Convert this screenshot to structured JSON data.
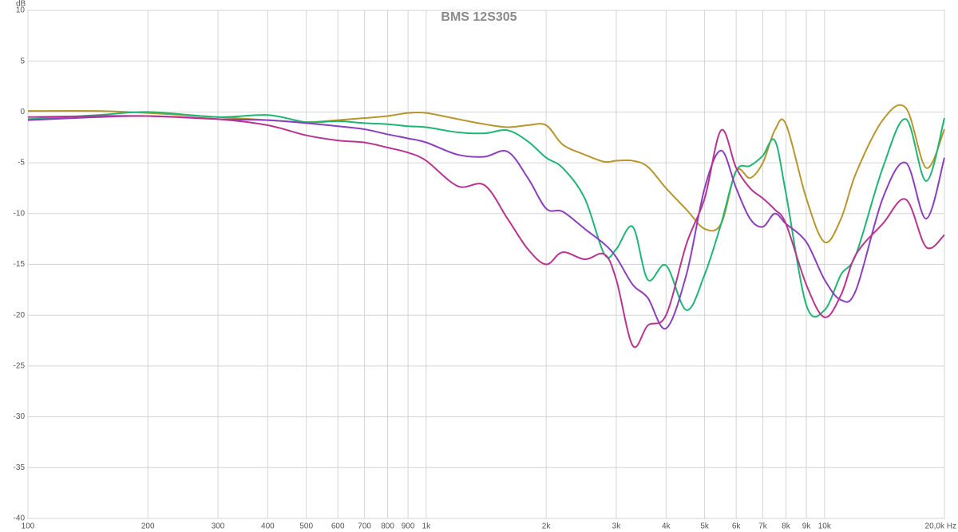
{
  "chart_data": {
    "type": "line",
    "title": "BMS 12S305",
    "ylabel": "dB",
    "xscale": "log",
    "grid": true,
    "xlim": [
      100,
      20000
    ],
    "ylim": [
      -40,
      10
    ],
    "yticks": [
      -40,
      -35,
      -30,
      -25,
      -20,
      -15,
      -10,
      -5,
      0,
      5,
      10
    ],
    "xticks": [
      100,
      200,
      300,
      400,
      500,
      600,
      700,
      800,
      900,
      {
        "value": 1000,
        "label": "1k"
      },
      {
        "value": 2000,
        "label": "2k"
      },
      {
        "value": 3000,
        "label": "3k"
      },
      {
        "value": 4000,
        "label": "4k"
      },
      {
        "value": 5000,
        "label": "5k"
      },
      {
        "value": 6000,
        "label": "6k"
      },
      {
        "value": 7000,
        "label": "7k"
      },
      {
        "value": 8000,
        "label": "8k"
      },
      {
        "value": 9000,
        "label": "9k"
      },
      {
        "value": 10000,
        "label": "10k"
      },
      {
        "value": 20000,
        "label": "20,0k Hz"
      }
    ],
    "x": [
      100,
      150,
      200,
      300,
      400,
      500,
      600,
      700,
      800,
      900,
      1000,
      1200,
      1400,
      1600,
      1800,
      2000,
      2200,
      2500,
      2800,
      3000,
      3300,
      3600,
      4000,
      4500,
      5000,
      5500,
      6000,
      6500,
      7000,
      7500,
      8000,
      9000,
      10000,
      11000,
      12000,
      14000,
      16000,
      18000,
      20000
    ],
    "series": [
      {
        "color": "#b8962e",
        "values": [
          0.1,
          0.1,
          -0.1,
          -0.5,
          -0.8,
          -1.0,
          -0.8,
          -0.6,
          -0.4,
          -0.1,
          -0.1,
          -0.7,
          -1.2,
          -1.5,
          -1.3,
          -1.3,
          -3.2,
          -4.2,
          -4.9,
          -4.8,
          -4.8,
          -5.4,
          -7.5,
          -9.6,
          -11.5,
          -11,
          -5.8,
          -6.5,
          -5.0,
          -1.8,
          -1.2,
          -8.5,
          -12.8,
          -10.5,
          -6,
          -0.8,
          0.4,
          -5.5,
          -1.7
        ]
      },
      {
        "color": "#1fb574",
        "values": [
          -0.7,
          -0.3,
          0,
          -0.5,
          -0.3,
          -1.0,
          -0.9,
          -1.1,
          -1.2,
          -1.4,
          -1.5,
          -2.0,
          -2.1,
          -1.8,
          -2.9,
          -4.5,
          -5.5,
          -8.5,
          -14,
          -13.5,
          -11.3,
          -16.5,
          -15.1,
          -19.5,
          -16,
          -11,
          -5.8,
          -5.3,
          -4.3,
          -2.8,
          -8,
          -19,
          -19.5,
          -16,
          -14,
          -5.5,
          -0.7,
          -6.8,
          -0.6
        ]
      },
      {
        "color": "#8a3fbf",
        "values": [
          -0.8,
          -0.5,
          -0.4,
          -0.7,
          -0.8,
          -1.1,
          -1.4,
          -1.7,
          -2.2,
          -2.6,
          -3.0,
          -4.2,
          -4.4,
          -3.9,
          -6.5,
          -9.5,
          -9.8,
          -11.5,
          -13,
          -14.3,
          -17,
          -18.3,
          -21.3,
          -16,
          -7.5,
          -3.8,
          -7.5,
          -10.5,
          -11.3,
          -10,
          -11,
          -12.8,
          -16.5,
          -18.5,
          -17.5,
          -8.5,
          -5,
          -10.5,
          -4.5
        ]
      },
      {
        "color": "#b8348f",
        "values": [
          -0.5,
          -0.4,
          -0.4,
          -0.7,
          -1.3,
          -2.3,
          -2.8,
          -3.0,
          -3.5,
          -4.0,
          -4.8,
          -7.3,
          -7.2,
          -10.5,
          -13.5,
          -15,
          -13.8,
          -14.5,
          -14,
          -16.5,
          -23,
          -21,
          -20,
          -13,
          -8.5,
          -1.8,
          -5.5,
          -7.5,
          -8.5,
          -9.6,
          -11,
          -17,
          -20.2,
          -18,
          -14,
          -11,
          -8.6,
          -13.3,
          -12.1
        ]
      }
    ]
  }
}
